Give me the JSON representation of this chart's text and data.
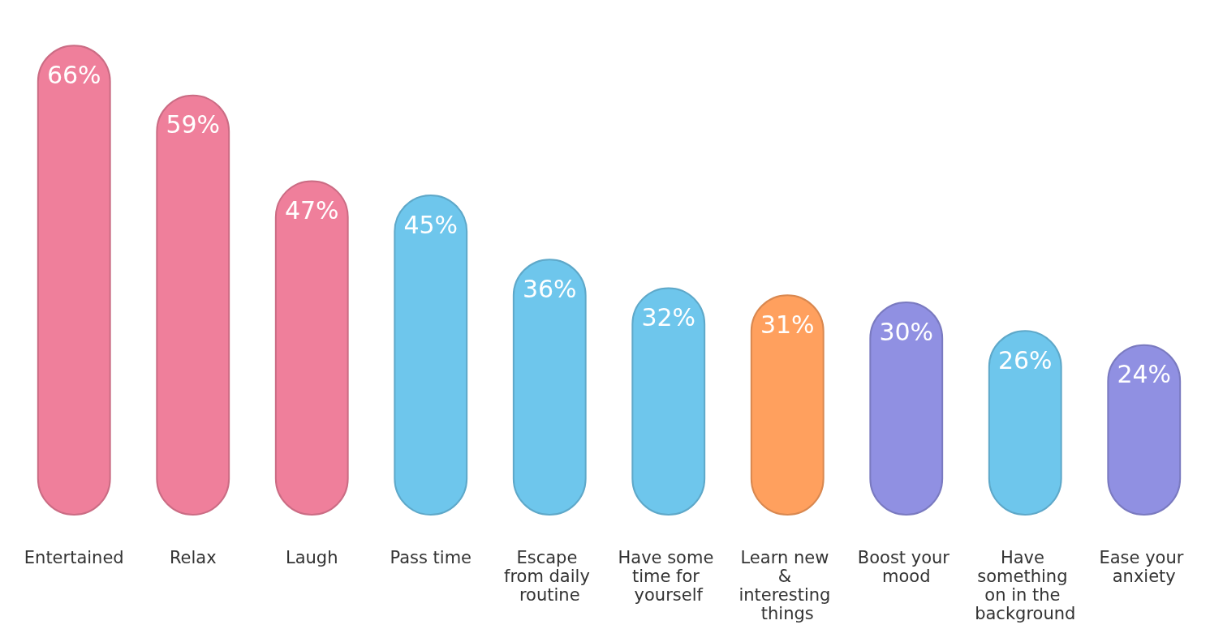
{
  "chart_data": {
    "type": "bar",
    "categories": [
      "Entertained",
      "Relax",
      "Laugh",
      "Pass time",
      "Escape from daily routine",
      "Have some time for yourself",
      "Learn new & interesting things",
      "Boost your mood",
      "Have something on in the background",
      "Ease your anxiety"
    ],
    "values": [
      66,
      59,
      47,
      45,
      36,
      32,
      31,
      30,
      26,
      24
    ],
    "colors": [
      "#ef7f9b",
      "#ef7f9b",
      "#ef7f9b",
      "#6ec6ec",
      "#6ec6ec",
      "#6ec6ec",
      "#ffa05e",
      "#9090e2",
      "#6ec6ec",
      "#9090e2"
    ],
    "value_labels": [
      "66%",
      "59%",
      "47%",
      "45%",
      "36%",
      "32%",
      "31%",
      "30%",
      "26%",
      "24%"
    ]
  }
}
